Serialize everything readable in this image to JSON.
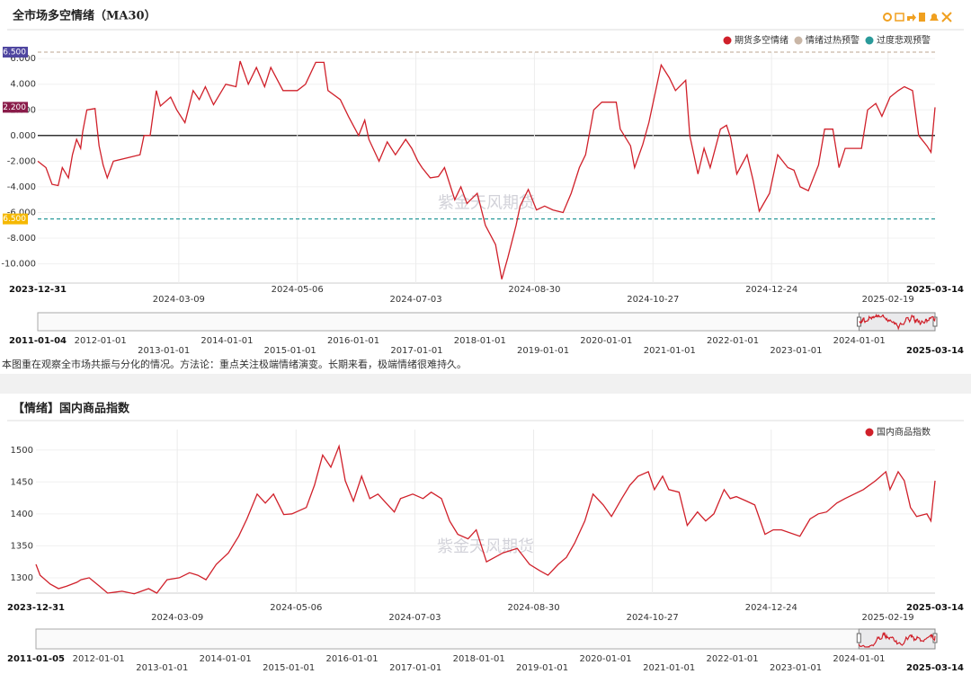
{
  "chart_data": [
    {
      "type": "line",
      "title": "全市场多空情绪（MA30）",
      "note": "本图重在观察全市场共振与分化的情况。方法论：重点关注极端情绪演变。长期来看，极端情绪很难持久。",
      "watermark": "紫金天风期货",
      "x": [
        "2023-12-31",
        "2024-01-04",
        "2024-01-07",
        "2024-01-10",
        "2024-01-12",
        "2024-01-15",
        "2024-01-17",
        "2024-01-19",
        "2024-01-21",
        "2024-01-22",
        "2024-01-24",
        "2024-01-28",
        "2024-01-30",
        "2024-02-01",
        "2024-02-03",
        "2024-02-06",
        "2024-02-19",
        "2024-02-21",
        "2024-02-24",
        "2024-02-27",
        "2024-02-29",
        "2024-03-05",
        "2024-03-08",
        "2024-03-12",
        "2024-03-16",
        "2024-03-19",
        "2024-03-22",
        "2024-03-26",
        "2024-04-01",
        "2024-04-06",
        "2024-04-08",
        "2024-04-12",
        "2024-04-16",
        "2024-04-20",
        "2024-04-23",
        "2024-04-29",
        "2024-05-06",
        "2024-05-10",
        "2024-05-15",
        "2024-05-19",
        "2024-05-21",
        "2024-05-27",
        "2024-05-31",
        "2024-06-05",
        "2024-06-08",
        "2024-06-10",
        "2024-06-15",
        "2024-06-19",
        "2024-06-23",
        "2024-06-28",
        "2024-07-01",
        "2024-07-04",
        "2024-07-06",
        "2024-07-10",
        "2024-07-14",
        "2024-07-17",
        "2024-07-22",
        "2024-07-25",
        "2024-07-28",
        "2024-08-02",
        "2024-08-06",
        "2024-08-11",
        "2024-08-14",
        "2024-08-17",
        "2024-08-21",
        "2024-08-23",
        "2024-08-27",
        "2024-08-31",
        "2024-09-04",
        "2024-09-08",
        "2024-09-13",
        "2024-09-17",
        "2024-09-21",
        "2024-09-24",
        "2024-09-28",
        "2024-10-02",
        "2024-10-09",
        "2024-10-11",
        "2024-10-16",
        "2024-10-18",
        "2024-10-22",
        "2024-10-25",
        "2024-10-29",
        "2024-10-31",
        "2024-11-04",
        "2024-11-07",
        "2024-11-12",
        "2024-11-14",
        "2024-11-18",
        "2024-11-21",
        "2024-11-24",
        "2024-11-29",
        "2024-12-02",
        "2024-12-04",
        "2024-12-07",
        "2024-12-12",
        "2024-12-15",
        "2024-12-18",
        "2024-12-23",
        "2024-12-27",
        "2025-01-01",
        "2025-01-04",
        "2025-01-07",
        "2025-01-11",
        "2025-01-16",
        "2025-01-19",
        "2025-01-23",
        "2025-01-26",
        "2025-01-29",
        "2025-02-06",
        "2025-02-09",
        "2025-02-13",
        "2025-02-16",
        "2025-02-20",
        "2025-02-24",
        "2025-02-27",
        "2025-03-03",
        "2025-03-06",
        "2025-03-10",
        "2025-03-12",
        "2025-03-14"
      ],
      "series": [
        {
          "name": "期货多空情绪",
          "color": "#d0202a",
          "values": [
            -2.0,
            -2.5,
            -3.8,
            -3.9,
            -2.5,
            -3.3,
            -1.5,
            -0.3,
            -1.0,
            0.3,
            2.0,
            2.1,
            -0.8,
            -2.3,
            -3.3,
            -2.0,
            -1.5,
            0,
            0,
            3.5,
            2.3,
            3.0,
            2.0,
            1.0,
            3.5,
            2.8,
            3.8,
            2.4,
            4.0,
            3.8,
            5.8,
            4.0,
            5.3,
            3.8,
            5.3,
            3.5,
            3.5,
            4.0,
            5.7,
            5.7,
            3.5,
            2.8,
            1.5,
            0,
            1.2,
            -0.3,
            -2.0,
            -0.5,
            -1.5,
            -0.3,
            -1.0,
            -2.0,
            -2.5,
            -3.3,
            -3.2,
            -2.5,
            -5.0,
            -4.0,
            -5.3,
            -4.5,
            -7.0,
            -8.5,
            -11.2,
            -9.5,
            -7.0,
            -5.5,
            -4.2,
            -5.8,
            -5.5,
            -5.8,
            -6.0,
            -4.5,
            -2.5,
            -1.5,
            2.0,
            2.6,
            2.6,
            0.5,
            -0.8,
            -2.5,
            -0.7,
            1.0,
            4.0,
            5.5,
            4.5,
            3.5,
            4.3,
            0,
            -3.0,
            -1.0,
            -2.5,
            0.5,
            0.8,
            -0.2,
            -3.0,
            -1.5,
            -3.5,
            -5.9,
            -4.5,
            -1.5,
            -2.5,
            -2.7,
            -4.0,
            -4.3,
            -2.3,
            0.5,
            0.5,
            -2.5,
            -1.0,
            -1.0,
            2.0,
            2.5,
            1.5,
            3.0,
            3.5,
            3.8,
            3.5,
            0,
            -0.8,
            -1.3,
            2.2
          ],
          "last_value_label": {
            "value": 2.2,
            "label": "2.200",
            "color": "#8a1c4a"
          }
        }
      ],
      "reference_lines": [
        {
          "name": "情绪过热预警",
          "value": 6.5,
          "label": "6.500",
          "color": "#c9b6a6",
          "label_color": "#4f46a0"
        },
        {
          "name": "过度悲观预警",
          "value": -6.5,
          "label": "-6.500",
          "color": "#2a9a9a",
          "label_color": "#f5b800"
        }
      ],
      "zero_line": true,
      "xlim": [
        "2023-12-31",
        "2025-03-14"
      ],
      "xticks": [
        "2023-12-31",
        "2024-03-09",
        "2024-05-06",
        "2024-07-03",
        "2024-08-30",
        "2024-10-27",
        "2024-12-24",
        "2025-02-19",
        "2025-03-14"
      ],
      "ylim": [
        -11.5,
        6.5
      ],
      "yticks": [
        {
          "value": 6,
          "label": "6.000"
        },
        {
          "value": 4,
          "label": "4.000"
        },
        {
          "value": 2,
          "label": "2.000"
        },
        {
          "value": 0,
          "label": "0.000"
        },
        {
          "value": -2,
          "label": "-2.000"
        },
        {
          "value": -4,
          "label": "-4.000"
        },
        {
          "value": -6,
          "label": "-6.000"
        },
        {
          "value": -8,
          "label": "-8.000"
        },
        {
          "value": -10,
          "label": "-10.000"
        }
      ],
      "grid": true,
      "navigator": {
        "xlim": [
          "2011-01-04",
          "2025-03-14"
        ],
        "xticks": [
          "2012-01-01",
          "2013-01-01",
          "2014-01-01",
          "2015-01-01",
          "2016-01-01",
          "2017-01-01",
          "2018-01-01",
          "2019-01-01",
          "2020-01-01",
          "2021-01-01",
          "2022-01-01",
          "2023-01-01",
          "2024-01-01"
        ]
      }
    },
    {
      "type": "line",
      "title": "【情绪】国内商品指数",
      "watermark": "紫金天风期货",
      "x": [
        "2023-12-31",
        "2024-01-02",
        "2024-01-07",
        "2024-01-11",
        "2024-01-15",
        "2024-01-20",
        "2024-01-22",
        "2024-01-26",
        "2024-01-31",
        "2024-02-04",
        "2024-02-11",
        "2024-02-17",
        "2024-02-24",
        "2024-02-28",
        "2024-03-04",
        "2024-03-10",
        "2024-03-15",
        "2024-03-19",
        "2024-03-23",
        "2024-03-28",
        "2024-04-03",
        "2024-04-08",
        "2024-04-12",
        "2024-04-17",
        "2024-04-21",
        "2024-04-25",
        "2024-04-30",
        "2024-05-04",
        "2024-05-11",
        "2024-05-15",
        "2024-05-19",
        "2024-05-23",
        "2024-05-27",
        "2024-05-30",
        "2024-06-03",
        "2024-06-07",
        "2024-06-11",
        "2024-06-15",
        "2024-06-19",
        "2024-06-23",
        "2024-06-26",
        "2024-07-02",
        "2024-07-07",
        "2024-07-11",
        "2024-07-16",
        "2024-07-20",
        "2024-07-24",
        "2024-07-29",
        "2024-08-02",
        "2024-08-07",
        "2024-08-11",
        "2024-08-15",
        "2024-08-22",
        "2024-08-28",
        "2024-09-02",
        "2024-09-06",
        "2024-09-11",
        "2024-09-15",
        "2024-09-19",
        "2024-09-24",
        "2024-09-28",
        "2024-10-03",
        "2024-10-07",
        "2024-10-12",
        "2024-10-16",
        "2024-10-20",
        "2024-10-25",
        "2024-10-28",
        "2024-11-01",
        "2024-11-04",
        "2024-11-09",
        "2024-11-13",
        "2024-11-18",
        "2024-11-22",
        "2024-11-26",
        "2024-12-01",
        "2024-12-04",
        "2024-12-07",
        "2024-12-12",
        "2024-12-16",
        "2024-12-21",
        "2024-12-25",
        "2024-12-29",
        "2025-01-07",
        "2025-01-12",
        "2025-01-16",
        "2025-01-20",
        "2025-01-25",
        "2025-01-29",
        "2025-02-07",
        "2025-02-13",
        "2025-02-18",
        "2025-02-20",
        "2025-02-24",
        "2025-02-27",
        "2025-03-02",
        "2025-03-05",
        "2025-03-10",
        "2025-03-12",
        "2025-03-14"
      ],
      "series": [
        {
          "name": "国内商品指数",
          "color": "#d0202a",
          "values": [
            1321,
            1304,
            1290,
            1283,
            1287,
            1293,
            1297,
            1300,
            1287,
            1276,
            1279,
            1275,
            1283,
            1276,
            1297,
            1300,
            1308,
            1304,
            1297,
            1321,
            1339,
            1365,
            1392,
            1431,
            1417,
            1431,
            1399,
            1400,
            1410,
            1445,
            1492,
            1473,
            1506,
            1452,
            1420,
            1459,
            1424,
            1431,
            1417,
            1403,
            1424,
            1431,
            1424,
            1434,
            1424,
            1389,
            1368,
            1361,
            1375,
            1325,
            1332,
            1339,
            1346,
            1321,
            1311,
            1304,
            1321,
            1332,
            1354,
            1389,
            1431,
            1414,
            1396,
            1424,
            1445,
            1459,
            1466,
            1438,
            1459,
            1438,
            1434,
            1382,
            1403,
            1389,
            1400,
            1438,
            1424,
            1427,
            1420,
            1414,
            1368,
            1375,
            1375,
            1365,
            1392,
            1400,
            1403,
            1417,
            1424,
            1438,
            1452,
            1466,
            1438,
            1466,
            1452,
            1410,
            1396,
            1400,
            1389,
            1452
          ]
        }
      ],
      "xlim": [
        "2023-12-31",
        "2025-03-14"
      ],
      "xticks": [
        "2023-12-31",
        "2024-03-09",
        "2024-05-06",
        "2024-07-03",
        "2024-08-30",
        "2024-10-27",
        "2024-12-24",
        "2025-02-19",
        "2025-03-14"
      ],
      "ylim": [
        1276,
        1532
      ],
      "yticks": [
        1300,
        1350,
        1400,
        1450,
        1500
      ],
      "grid": true,
      "navigator": {
        "xlim": [
          "2011-01-05",
          "2025-03-14"
        ],
        "xticks": [
          "2012-01-01",
          "2013-01-01",
          "2014-01-01",
          "2015-01-01",
          "2016-01-01",
          "2017-01-01",
          "2018-01-01",
          "2019-01-01",
          "2020-01-01",
          "2021-01-01",
          "2022-01-01",
          "2023-01-01",
          "2024-01-01"
        ]
      }
    }
  ]
}
